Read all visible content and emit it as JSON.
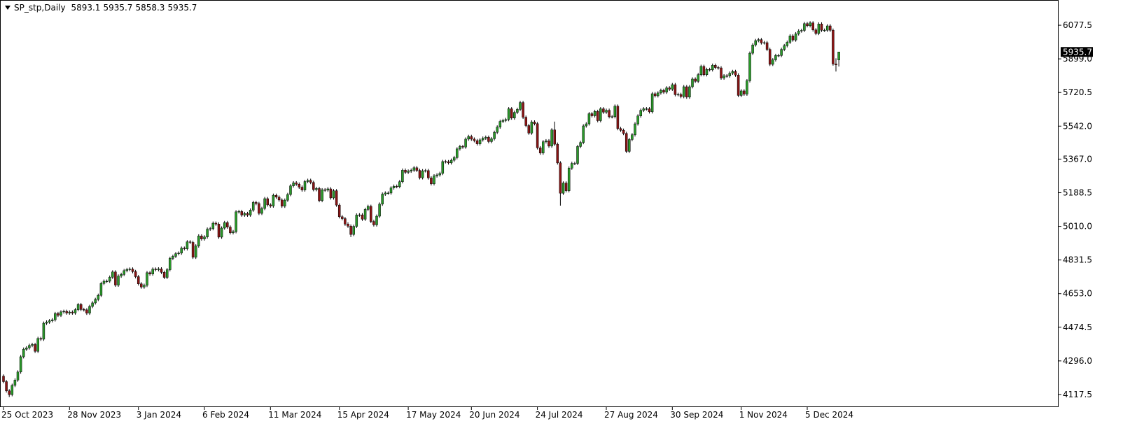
{
  "chart_data": {
    "type": "candlestick",
    "title": "SP_stp,Daily",
    "up_color": "#2a9a2a",
    "down_color": "#8b1414",
    "wick_color": "#000000",
    "ylim": [
      4058,
      6204
    ],
    "yticks": [
      4117.5,
      {
        "value": 4296,
        "label": "4296.0"
      },
      4474.5,
      {
        "value": 4653,
        "label": "4653.0"
      },
      4831.5,
      {
        "value": 5010,
        "label": "5010.0"
      },
      5188.5,
      {
        "value": 5367,
        "label": "5367.0"
      },
      {
        "value": 5542,
        "label": "5542.0"
      },
      5720.5,
      {
        "value": 5899,
        "label": "5899.0"
      },
      6077.5
    ],
    "categories": [
      "25 Oct 2023",
      null,
      null,
      null,
      null,
      null,
      null,
      null,
      null,
      null,
      null,
      null,
      null,
      null,
      null,
      null,
      null,
      null,
      null,
      null,
      null,
      null,
      null,
      "28 Nov 2023",
      null,
      null,
      null,
      null,
      null,
      null,
      null,
      null,
      null,
      null,
      null,
      null,
      null,
      null,
      null,
      null,
      null,
      null,
      null,
      null,
      null,
      null,
      null,
      "3 Jan 2024",
      null,
      null,
      null,
      null,
      null,
      null,
      null,
      null,
      null,
      null,
      null,
      null,
      null,
      null,
      null,
      null,
      null,
      null,
      null,
      null,
      null,
      null,
      "6 Feb 2024",
      null,
      null,
      null,
      null,
      null,
      null,
      null,
      null,
      null,
      null,
      null,
      null,
      null,
      null,
      null,
      null,
      null,
      null,
      null,
      null,
      null,
      null,
      "11 Mar 2024",
      null,
      null,
      null,
      null,
      null,
      null,
      null,
      null,
      null,
      null,
      null,
      null,
      null,
      null,
      null,
      null,
      null,
      null,
      null,
      null,
      null,
      null,
      null,
      "15 Apr 2024",
      null,
      null,
      null,
      null,
      null,
      null,
      null,
      null,
      null,
      null,
      null,
      null,
      null,
      null,
      null,
      null,
      null,
      null,
      null,
      null,
      null,
      null,
      null,
      "17 May 2024",
      null,
      null,
      null,
      null,
      null,
      null,
      null,
      null,
      null,
      null,
      null,
      null,
      null,
      null,
      null,
      null,
      null,
      null,
      null,
      null,
      null,
      "20 Jun 2024",
      null,
      null,
      null,
      null,
      null,
      null,
      null,
      null,
      null,
      null,
      null,
      null,
      null,
      null,
      null,
      null,
      null,
      null,
      null,
      null,
      null,
      null,
      "24 Jul 2024",
      null,
      null,
      null,
      null,
      null,
      null,
      null,
      null,
      null,
      null,
      null,
      null,
      null,
      null,
      null,
      null,
      null,
      null,
      null,
      null,
      null,
      null,
      null,
      "27 Aug 2024",
      null,
      null,
      null,
      null,
      null,
      null,
      null,
      null,
      null,
      null,
      null,
      null,
      null,
      null,
      null,
      null,
      null,
      null,
      null,
      null,
      null,
      null,
      "30 Sep 2024",
      null,
      null,
      null,
      null,
      null,
      null,
      null,
      null,
      null,
      null,
      null,
      null,
      null,
      null,
      null,
      null,
      null,
      null,
      null,
      null,
      null,
      null,
      null,
      "1 Nov 2024",
      null,
      null,
      null,
      null,
      null,
      null,
      null,
      null,
      null,
      null,
      null,
      null,
      null,
      null,
      null,
      null,
      null,
      null,
      null,
      null,
      null,
      null,
      "5 Dec 2024",
      null,
      null,
      null,
      null,
      null,
      null,
      null,
      null,
      null,
      null,
      null
    ],
    "open": [
      4215,
      4186,
      4137,
      4117,
      4166,
      4194,
      4237,
      4318,
      4358,
      4365,
      4378,
      4383,
      4347,
      4415,
      4411,
      4496,
      4502,
      4509,
      4514,
      4547,
      4538,
      4556,
      4559,
      4550,
      4555,
      4550,
      4568,
      4595,
      4569,
      4567,
      4549,
      4585,
      4604,
      4622,
      4644,
      4707,
      4719,
      4719,
      4740,
      4768,
      4698,
      4746,
      4755,
      4775,
      4781,
      4783,
      4770,
      4743,
      4705,
      4688,
      4697,
      4764,
      4757,
      4783,
      4780,
      4784,
      4766,
      4739,
      4780,
      4840,
      4851,
      4865,
      4868,
      4894,
      4891,
      4928,
      4925,
      4846,
      4906,
      4959,
      4943,
      4954,
      4995,
      4998,
      5027,
      5022,
      4953,
      5001,
      5030,
      5006,
      4976,
      4982,
      5087,
      5089,
      5070,
      5078,
      5070,
      5096,
      5137,
      5131,
      5079,
      5105,
      5157,
      5124,
      5118,
      5175,
      5165,
      5150,
      5117,
      5149,
      5179,
      5225,
      5241,
      5234,
      5218,
      5203,
      5248,
      5254,
      5243,
      5205,
      5211,
      5147,
      5204,
      5202,
      5209,
      5161,
      5199,
      5123,
      5061,
      5051,
      5022,
      5011,
      4967,
      5010,
      5070,
      5071,
      5048,
      5100,
      5116,
      5036,
      5018,
      5064,
      5128,
      5181,
      5187,
      5187,
      5214,
      5223,
      5221,
      5247,
      5308,
      5297,
      5303,
      5308,
      5321,
      5307,
      5268,
      5305,
      5306,
      5267,
      5236,
      5278,
      5283,
      5291,
      5354,
      5353,
      5347,
      5361,
      5375,
      5421,
      5434,
      5431,
      5473,
      5487,
      5473,
      5465,
      5448,
      5469,
      5478,
      5483,
      5460,
      5475,
      5509,
      5537,
      5567,
      5572,
      5577,
      5634,
      5585,
      5615,
      5631,
      5667,
      5589,
      5545,
      5505,
      5564,
      5555,
      5427,
      5399,
      5459,
      5464,
      5436,
      5522,
      5446,
      5347,
      5186,
      5240,
      5199,
      5319,
      5344,
      5344,
      5434,
      5455,
      5543,
      5554,
      5608,
      5597,
      5620,
      5571,
      5634,
      5616,
      5626,
      5592,
      5592,
      5648,
      5529,
      5520,
      5503,
      5408,
      5471,
      5496,
      5554,
      5596,
      5626,
      5634,
      5634,
      5618,
      5714,
      5703,
      5718,
      5732,
      5722,
      5745,
      5738,
      5762,
      5709,
      5710,
      5699,
      5751,
      5696,
      5751,
      5792,
      5780,
      5815,
      5859,
      5815,
      5843,
      5841,
      5865,
      5853,
      5851,
      5797,
      5809,
      5808,
      5823,
      5832,
      5813,
      5705,
      5729,
      5712,
      5783,
      5929,
      5973,
      5996,
      6001,
      5984,
      5985,
      5949,
      5870,
      5894,
      5917,
      5917,
      5949,
      5969,
      5987,
      6021,
      5999,
      6032,
      6047,
      6050,
      6086,
      6075,
      6090,
      6053,
      6034,
      6084,
      6051,
      6051,
      6074,
      6051,
      5872,
      5893.1
    ],
    "high": [
      4224,
      4195,
      4146,
      4175,
      4203,
      4246,
      4327,
      4367,
      4374,
      4387,
      4392,
      4392,
      4424,
      4424,
      4505,
      4511,
      4518,
      4523,
      4556,
      4556,
      4565,
      4568,
      4568,
      4564,
      4564,
      4577,
      4604,
      4604,
      4578,
      4576,
      4594,
      4613,
      4631,
      4653,
      4716,
      4728,
      4728,
      4749,
      4777,
      4777,
      4755,
      4764,
      4784,
      4790,
      4792,
      4792,
      4779,
      4752,
      4714,
      4706,
      4773,
      4773,
      4792,
      4792,
      4793,
      4793,
      4775,
      4789,
      4849,
      4860,
      4874,
      4877,
      4903,
      4903,
      4937,
      4937,
      4934,
      4915,
      4968,
      4968,
      4963,
      5004,
      5007,
      5036,
      5036,
      5031,
      5010,
      5039,
      5039,
      5015,
      4991,
      5096,
      5098,
      5098,
      5087,
      5087,
      5105,
      5146,
      5146,
      5140,
      5114,
      5166,
      5166,
      5133,
      5184,
      5184,
      5174,
      5159,
      5158,
      5188,
      5234,
      5250,
      5250,
      5243,
      5227,
      5257,
      5263,
      5263,
      5252,
      5220,
      5220,
      5213,
      5213,
      5218,
      5218,
      5208,
      5208,
      5132,
      5070,
      5060,
      5031,
      5020,
      5019,
      5079,
      5080,
      5080,
      5109,
      5125,
      5125,
      5045,
      5073,
      5137,
      5190,
      5196,
      5196,
      5223,
      5232,
      5232,
      5256,
      5317,
      5317,
      5312,
      5317,
      5330,
      5330,
      5316,
      5314,
      5315,
      5315,
      5276,
      5287,
      5292,
      5300,
      5363,
      5363,
      5362,
      5370,
      5384,
      5430,
      5443,
      5443,
      5482,
      5496,
      5496,
      5482,
      5474,
      5478,
      5487,
      5492,
      5492,
      5484,
      5518,
      5546,
      5576,
      5581,
      5586,
      5643,
      5643,
      5624,
      5640,
      5676,
      5676,
      5598,
      5554,
      5573,
      5573,
      5564,
      5436,
      5468,
      5473,
      5473,
      5531,
      5566,
      5455,
      5356,
      5249,
      5249,
      5328,
      5353,
      5353,
      5443,
      5464,
      5552,
      5563,
      5617,
      5617,
      5629,
      5629,
      5643,
      5643,
      5635,
      5635,
      5601,
      5657,
      5657,
      5538,
      5529,
      5512,
      5480,
      5505,
      5563,
      5605,
      5635,
      5643,
      5643,
      5643,
      5723,
      5723,
      5727,
      5741,
      5741,
      5754,
      5754,
      5771,
      5771,
      5719,
      5719,
      5760,
      5760,
      5760,
      5801,
      5801,
      5824,
      5868,
      5868,
      5852,
      5852,
      5874,
      5874,
      5862,
      5860,
      5818,
      5818,
      5832,
      5841,
      5841,
      5822,
      5738,
      5738,
      5792,
      5938,
      5982,
      6005,
      6010,
      6010,
      5994,
      5994,
      5958,
      5903,
      5926,
      5926,
      5958,
      5978,
      5996,
      6030,
      6030,
      6041,
      6056,
      6059,
      6095,
      6095,
      6099,
      6099,
      6062,
      6093,
      6093,
      6060,
      6083,
      6083,
      6060,
      5902,
      5935.7
    ],
    "low": [
      4177,
      4128,
      4104,
      4108,
      4157,
      4185,
      4228,
      4309,
      4349,
      4356,
      4369,
      4338,
      4338,
      4402,
      4402,
      4487,
      4493,
      4500,
      4505,
      4529,
      4529,
      4547,
      4541,
      4541,
      4541,
      4541,
      4559,
      4560,
      4558,
      4540,
      4540,
      4576,
      4595,
      4613,
      4635,
      4698,
      4710,
      4710,
      4731,
      4689,
      4689,
      4737,
      4746,
      4766,
      4772,
      4761,
      4734,
      4696,
      4679,
      4679,
      4688,
      4748,
      4748,
      4771,
      4771,
      4757,
      4730,
      4730,
      4771,
      4831,
      4842,
      4856,
      4859,
      4882,
      4882,
      4916,
      4837,
      4837,
      4897,
      4934,
      4934,
      4945,
      4986,
      4989,
      5013,
      4944,
      4944,
      4992,
      4997,
      4967,
      4967,
      4973,
      5078,
      5061,
      5061,
      5061,
      5061,
      5087,
      5122,
      5070,
      5070,
      5096,
      5115,
      5109,
      5109,
      5156,
      5141,
      5108,
      5108,
      5140,
      5170,
      5216,
      5225,
      5209,
      5194,
      5194,
      5239,
      5234,
      5196,
      5196,
      5138,
      5138,
      5193,
      5193,
      5152,
      5152,
      5114,
      5052,
      5042,
      5013,
      5002,
      4953,
      4958,
      5001,
      5061,
      5039,
      5039,
      5091,
      5027,
      5009,
      5009,
      5055,
      5119,
      5172,
      5178,
      5178,
      5205,
      5212,
      5212,
      5238,
      5288,
      5288,
      5294,
      5299,
      5298,
      5259,
      5259,
      5296,
      5258,
      5227,
      5227,
      5269,
      5274,
      5282,
      5344,
      5338,
      5338,
      5352,
      5366,
      5412,
      5422,
      5422,
      5464,
      5464,
      5456,
      5439,
      5439,
      5460,
      5469,
      5451,
      5451,
      5466,
      5500,
      5528,
      5558,
      5563,
      5568,
      5576,
      5576,
      5606,
      5622,
      5580,
      5536,
      5496,
      5496,
      5546,
      5418,
      5390,
      5390,
      5450,
      5427,
      5427,
      5437,
      5338,
      5120,
      5177,
      5190,
      5190,
      5310,
      5335,
      5335,
      5425,
      5446,
      5534,
      5545,
      5588,
      5588,
      5562,
      5562,
      5607,
      5607,
      5583,
      5583,
      5583,
      5520,
      5511,
      5494,
      5399,
      5399,
      5462,
      5487,
      5545,
      5587,
      5617,
      5625,
      5609,
      5609,
      5694,
      5694,
      5709,
      5713,
      5713,
      5729,
      5729,
      5700,
      5700,
      5690,
      5690,
      5687,
      5687,
      5742,
      5771,
      5771,
      5806,
      5806,
      5806,
      5832,
      5832,
      5844,
      5842,
      5788,
      5788,
      5799,
      5799,
      5814,
      5804,
      5696,
      5696,
      5703,
      5703,
      5774,
      5920,
      5964,
      5987,
      5975,
      5975,
      5940,
      5861,
      5861,
      5885,
      5908,
      5908,
      5940,
      5960,
      5978,
      5990,
      5990,
      6023,
      6038,
      6041,
      6066,
      6066,
      6044,
      6025,
      6025,
      6042,
      6042,
      6042,
      6042,
      5863,
      5832,
      5858.3
    ],
    "close": [
      4186,
      4137,
      4117,
      4166,
      4194,
      4237,
      4318,
      4358,
      4365,
      4378,
      4383,
      4347,
      4415,
      4411,
      4496,
      4502,
      4509,
      4514,
      4547,
      4538,
      4556,
      4559,
      4550,
      4555,
      4550,
      4568,
      4595,
      4569,
      4567,
      4549,
      4585,
      4604,
      4622,
      4644,
      4707,
      4719,
      4719,
      4740,
      4768,
      4698,
      4746,
      4755,
      4775,
      4781,
      4783,
      4770,
      4743,
      4705,
      4688,
      4697,
      4764,
      4757,
      4783,
      4780,
      4784,
      4766,
      4739,
      4780,
      4840,
      4851,
      4865,
      4868,
      4894,
      4891,
      4928,
      4925,
      4846,
      4906,
      4959,
      4943,
      4954,
      4995,
      4998,
      5027,
      5022,
      4953,
      5001,
      5030,
      5006,
      4976,
      4982,
      5087,
      5089,
      5070,
      5078,
      5070,
      5096,
      5137,
      5131,
      5079,
      5105,
      5157,
      5124,
      5118,
      5175,
      5165,
      5150,
      5117,
      5149,
      5179,
      5225,
      5241,
      5234,
      5218,
      5203,
      5248,
      5254,
      5243,
      5205,
      5211,
      5147,
      5204,
      5202,
      5209,
      5161,
      5199,
      5123,
      5061,
      5051,
      5022,
      5011,
      4967,
      5010,
      5070,
      5071,
      5048,
      5100,
      5116,
      5036,
      5018,
      5064,
      5128,
      5181,
      5187,
      5187,
      5214,
      5223,
      5221,
      5247,
      5308,
      5297,
      5303,
      5308,
      5321,
      5307,
      5268,
      5305,
      5306,
      5267,
      5236,
      5278,
      5283,
      5291,
      5354,
      5353,
      5347,
      5361,
      5375,
      5421,
      5434,
      5431,
      5473,
      5487,
      5473,
      5465,
      5448,
      5469,
      5478,
      5483,
      5460,
      5475,
      5509,
      5537,
      5567,
      5572,
      5577,
      5634,
      5585,
      5615,
      5631,
      5667,
      5589,
      5545,
      5505,
      5564,
      5555,
      5427,
      5399,
      5459,
      5464,
      5436,
      5522,
      5446,
      5347,
      5186,
      5240,
      5199,
      5319,
      5344,
      5344,
      5434,
      5455,
      5543,
      5554,
      5608,
      5597,
      5620,
      5571,
      5634,
      5616,
      5626,
      5592,
      5592,
      5648,
      5529,
      5520,
      5503,
      5408,
      5471,
      5496,
      5554,
      5596,
      5626,
      5634,
      5634,
      5618,
      5714,
      5703,
      5718,
      5732,
      5722,
      5745,
      5738,
      5762,
      5709,
      5710,
      5699,
      5751,
      5696,
      5751,
      5792,
      5780,
      5815,
      5859,
      5815,
      5843,
      5841,
      5865,
      5853,
      5851,
      5797,
      5809,
      5808,
      5823,
      5832,
      5813,
      5705,
      5729,
      5712,
      5783,
      5929,
      5973,
      5996,
      6001,
      5984,
      5985,
      5949,
      5870,
      5894,
      5917,
      5917,
      5949,
      5969,
      5987,
      6021,
      5999,
      6032,
      6047,
      6050,
      6086,
      6075,
      6090,
      6053,
      6034,
      6084,
      6051,
      6051,
      6074,
      6051,
      5872,
      5867,
      5935.7
    ]
  }
}
